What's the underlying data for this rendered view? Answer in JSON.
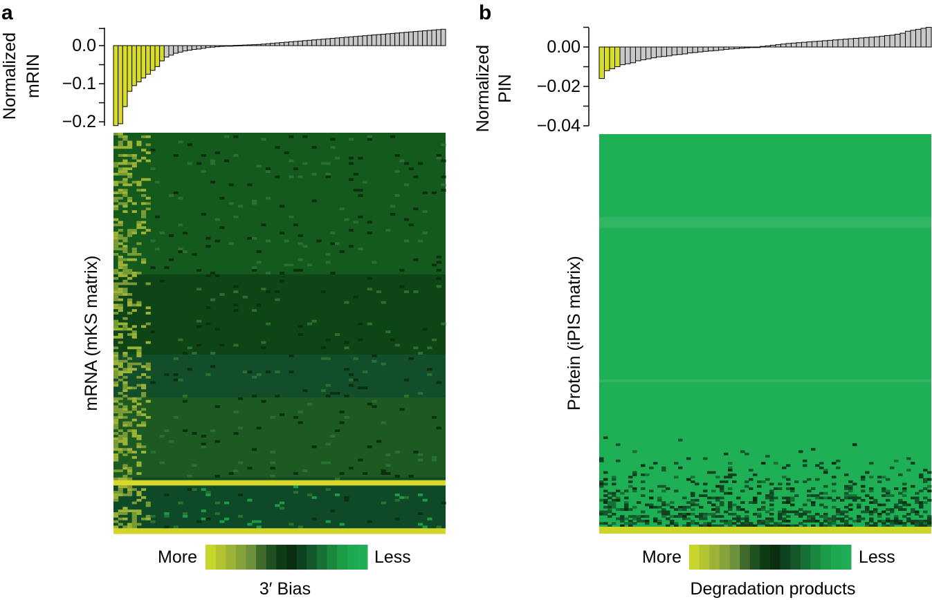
{
  "panels": {
    "a": {
      "letter": "a"
    },
    "b": {
      "letter": "b"
    }
  },
  "colors": {
    "highlight_bar": "#d8dc2a",
    "normal_bar": "#c8c8c8",
    "bar_stroke": "#000000",
    "scale": [
      "#c8d62c",
      "#b3c432",
      "#9db337",
      "#86a23a",
      "#6d913c",
      "#3f6a2c",
      "#1f5020",
      "#0e3a14",
      "#0a2e10",
      "#0f4220",
      "#13572b",
      "#177034",
      "#1a883d",
      "#1c9c47",
      "#1ea850",
      "#20ad55"
    ]
  },
  "chart_data": [
    {
      "type": "bar",
      "panel": "a",
      "ylabel": [
        "Normalized",
        "mRIN"
      ],
      "ylim": [
        -0.21,
        0.045
      ],
      "yticks": [
        0.0,
        -0.1,
        -0.2
      ],
      "ytick_labels": [
        "0.0",
        "−0.1",
        "−0.2"
      ],
      "highlight_count": 11,
      "values": [
        -0.21,
        -0.205,
        -0.16,
        -0.12,
        -0.105,
        -0.095,
        -0.085,
        -0.075,
        -0.065,
        -0.055,
        -0.04,
        -0.03,
        -0.025,
        -0.02,
        -0.017,
        -0.014,
        -0.012,
        -0.01,
        -0.009,
        -0.007,
        -0.005,
        -0.004,
        -0.003,
        -0.002,
        -0.001,
        0.0,
        0.0005,
        0.001,
        0.0015,
        0.002,
        0.0025,
        0.003,
        0.004,
        0.005,
        0.006,
        0.007,
        0.008,
        0.009,
        0.01,
        0.011,
        0.012,
        0.013,
        0.014,
        0.015,
        0.016,
        0.017,
        0.018,
        0.019,
        0.02,
        0.021,
        0.022,
        0.023,
        0.024,
        0.025,
        0.026,
        0.027,
        0.028,
        0.029,
        0.03,
        0.031,
        0.032,
        0.033,
        0.034,
        0.035,
        0.036,
        0.037,
        0.038,
        0.039,
        0.04,
        0.041,
        0.042,
        0.043
      ],
      "heatmap_ylabel": "mRNA (mKS matrix)",
      "legend": {
        "left": "More",
        "right": "Less",
        "title": "3′ Bias"
      }
    },
    {
      "type": "bar",
      "panel": "b",
      "ylabel": [
        "Normalized",
        "PIN"
      ],
      "ylim": [
        -0.04,
        0.01
      ],
      "yticks": [
        0.0,
        -0.02,
        -0.04
      ],
      "ytick_labels": [
        "0.00",
        "−0.02",
        "−0.04"
      ],
      "highlight_count": 4,
      "values": [
        -0.016,
        -0.012,
        -0.011,
        -0.01,
        -0.009,
        -0.0085,
        -0.008,
        -0.007,
        -0.0065,
        -0.006,
        -0.0055,
        -0.005,
        -0.0048,
        -0.0045,
        -0.004,
        -0.0038,
        -0.0035,
        -0.003,
        -0.0028,
        -0.0025,
        -0.0022,
        -0.002,
        -0.0018,
        -0.0015,
        -0.0012,
        -0.001,
        -0.0008,
        -0.0006,
        -0.0004,
        -0.0002,
        0.0,
        0.0003,
        0.0006,
        0.0009,
        0.0012,
        0.0015,
        0.0018,
        0.002,
        0.0022,
        0.0024,
        0.0026,
        0.0028,
        0.003,
        0.0032,
        0.0034,
        0.0036,
        0.0038,
        0.004,
        0.0042,
        0.0044,
        0.0046,
        0.0048,
        0.005,
        0.0052,
        0.0055,
        0.0058,
        0.006,
        0.0065,
        0.007,
        0.008,
        0.0085,
        0.009,
        0.0095,
        0.01
      ],
      "heatmap_ylabel": "Protein (iPIS matrix)",
      "legend": {
        "left": "More",
        "right": "Less",
        "title": "Degradation products"
      }
    }
  ]
}
